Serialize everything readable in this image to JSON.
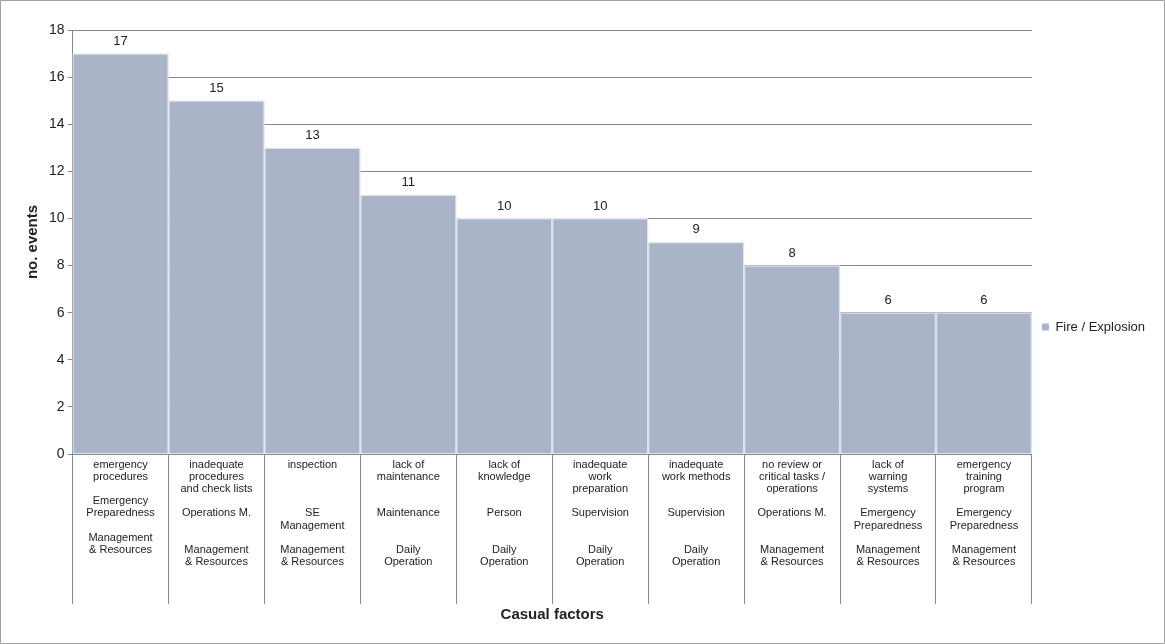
{
  "chart_data": {
    "type": "bar",
    "xlabel": "Casual factors",
    "ylabel": "no. events",
    "categories": [
      "emergency\nprocedures\n\nEmergency\nPreparedness\n\nManagement\n& Resources",
      "inadequate\nprocedures\nand check lists\n\nOperations M.\n\n\nManagement\n& Resources",
      "inspection\n\n\n\nSE\nManagement\n\nManagement\n& Resources",
      "lack of\nmaintenance\n\n\nMaintenance\n\n\nDaily\nOperation",
      "lack of\nknowledge\n\n\nPerson\n\n\nDaily\nOperation",
      "inadequate\nwork\npreparation\n\nSupervision\n\n\nDaily\nOperation",
      "inadequate\nwork methods\n\n\nSupervision\n\n\nDaily\nOperation",
      "no review or\ncritical tasks /\noperations\n\nOperations M.\n\n\nManagement\n& Resources",
      "lack of\nwarning\nsystems\n\nEmergency\nPreparedness\n\nManagement\n& Resources",
      "emergency\ntraining\nprogram\n\nEmergency\nPreparedness\n\nManagement\n& Resources"
    ],
    "series": [
      {
        "name": "Fire / Explosion",
        "color": "#a9b4c8",
        "values": [
          17,
          15,
          13,
          11,
          10,
          10,
          9,
          8,
          6,
          6
        ]
      }
    ],
    "ylim": [
      0,
      18
    ],
    "yticks": [
      0,
      2,
      4,
      6,
      8,
      10,
      12,
      14,
      16,
      18
    ],
    "grid": "y",
    "legend": "right",
    "data_labels": true
  }
}
